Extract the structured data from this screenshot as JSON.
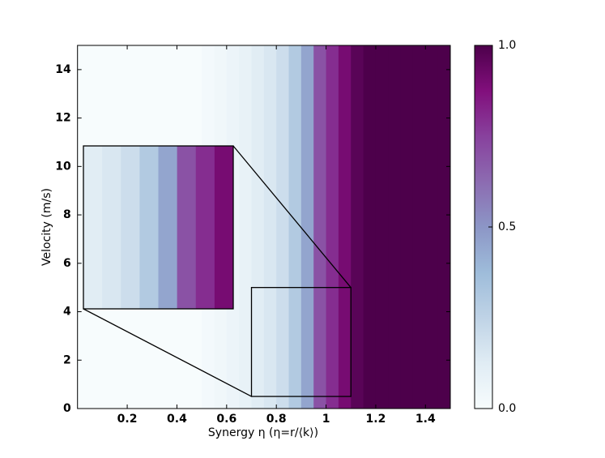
{
  "chart_data": {
    "type": "heatmap",
    "x_label": "Synergy η (η=r/⟨k⟩)",
    "y_label": "Velocity (m/s)",
    "x": [
      0.025,
      0.075,
      0.125,
      0.175,
      0.225,
      0.275,
      0.325,
      0.375,
      0.425,
      0.475,
      0.525,
      0.575,
      0.625,
      0.675,
      0.725,
      0.775,
      0.825,
      0.875,
      0.925,
      0.975,
      1.025,
      1.075,
      1.125,
      1.175,
      1.225,
      1.275,
      1.325,
      1.375,
      1.425,
      1.475
    ],
    "values": [
      0,
      0,
      0,
      0,
      0,
      0,
      0,
      0,
      0,
      0,
      0.02,
      0.04,
      0.06,
      0.08,
      0.12,
      0.15,
      0.2,
      0.3,
      0.45,
      0.7,
      0.8,
      0.9,
      0.97,
      1,
      1,
      1,
      1,
      1,
      1,
      1
    ],
    "colormap": "BuPu",
    "xlim": [
      0,
      1.5
    ],
    "ylim": [
      0,
      15
    ],
    "xticks": [
      0.2,
      0.4,
      0.6,
      0.8,
      1.0,
      1.2,
      1.4
    ],
    "yticks": [
      0,
      2,
      4,
      6,
      8,
      10,
      12,
      14
    ],
    "clim": [
      0,
      1
    ],
    "cticks": [
      {
        "value": 0,
        "label": "0.0"
      },
      0.5,
      {
        "value": 1,
        "label": "1.0"
      }
    ],
    "inset": {
      "xlim": [
        0.7,
        1.1
      ],
      "ylim": [
        0.5,
        5
      ]
    }
  }
}
